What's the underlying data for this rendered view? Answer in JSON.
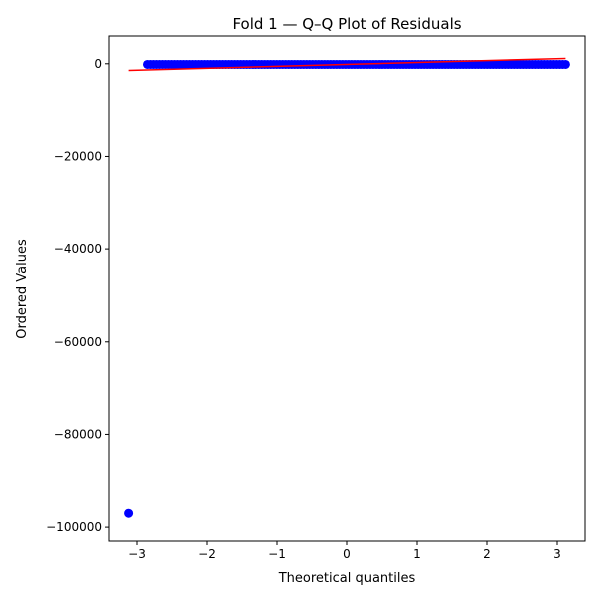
{
  "chart_data": {
    "type": "scatter",
    "title": "Fold 1 — Q–Q Plot of Residuals",
    "xlabel": "Theoretical quantiles",
    "ylabel": "Ordered Values",
    "xlim": [
      -3.4,
      3.4
    ],
    "ylim": [
      -103000,
      6000
    ],
    "xticks": [
      -3,
      -2,
      -1,
      0,
      1,
      2,
      3
    ],
    "xtick_labels": [
      "−3",
      "−2",
      "−1",
      "0",
      "1",
      "2",
      "3"
    ],
    "yticks": [
      0,
      -20000,
      -40000,
      -60000,
      -80000,
      -100000
    ],
    "ytick_labels": [
      "0",
      "−20000",
      "−40000",
      "−60000",
      "−80000",
      "−100000"
    ],
    "grid": false,
    "series": [
      {
        "kind": "points",
        "color": "#0000ff",
        "x_range": [
          -2.85,
          3.12
        ],
        "y_typical": -150,
        "outliers": [
          {
            "x": -3.12,
            "y": -97000
          }
        ]
      },
      {
        "kind": "fit-line",
        "color": "#ff0000",
        "x": [
          -3.12,
          3.12
        ],
        "y": [
          -1450,
          1150
        ]
      }
    ]
  }
}
